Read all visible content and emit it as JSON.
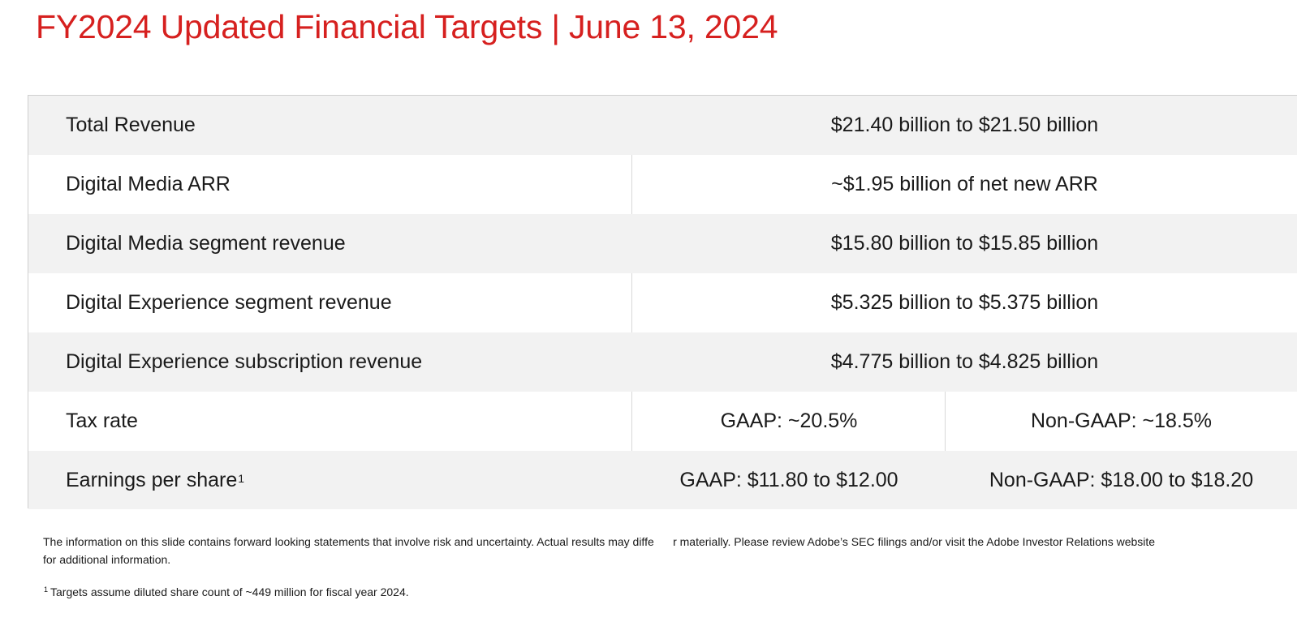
{
  "title": "FY2024 Updated Financial Targets | June 13, 2024",
  "rows": [
    {
      "label": "Total Revenue",
      "value": "$21.40 billion to $21.50 billion"
    },
    {
      "label": "Digital Media ARR",
      "value": "~$1.95 billion of net new ARR"
    },
    {
      "label": "Digital Media segment revenue",
      "value": "$15.80 billion to $15.85 billion"
    },
    {
      "label": "Digital Experience segment revenue",
      "value": "$5.325 billion to $5.375 billion"
    },
    {
      "label": "Digital Experience subscription revenue",
      "value": "$4.775 billion to $4.825 billion"
    }
  ],
  "tax_rate": {
    "label": "Tax rate",
    "gaap": "GAAP: ~20.5%",
    "non_gaap": "Non-GAAP: ~18.5%"
  },
  "eps": {
    "label": "Earnings per share",
    "footnote_mark": "1",
    "gaap": "GAAP: $11.80 to $12.00",
    "non_gaap": "Non-GAAP: $18.00 to $18.20"
  },
  "disclaimer": "The information on this slide contains forward looking statements that involve risk and uncertainty. Actual results may diffe      r materially. Please review Adobe’s SEC filings and/or visit the Adobe Investor Relations website for additional information.",
  "footnote": {
    "mark": "1",
    "text": "Targets assume diluted share count of ~449 million for fiscal year 2024."
  }
}
